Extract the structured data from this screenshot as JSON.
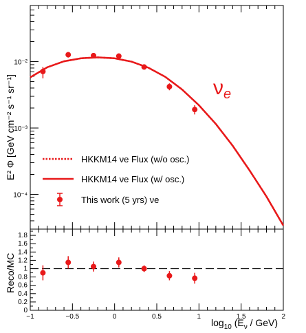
{
  "colors": {
    "accent": "#e8191a",
    "axis": "#000000",
    "background": "#ffffff"
  },
  "chart_data": [
    {
      "type": "line",
      "panel": "top",
      "ylabel": "E² Φ [GeV cm⁻² s⁻¹ sr⁻¹]",
      "y_scale": "log",
      "ylim": [
        3e-05,
        0.07
      ],
      "xlim": [
        -1,
        2
      ],
      "y_tick_labels": [
        "10⁻²",
        "10⁻³",
        "10⁻⁴"
      ],
      "annotation": "νe",
      "legend": {
        "placement": "bottom-left",
        "entries": [
          {
            "label": "HKKM14 νe Flux (w/o osc.)",
            "style": "dotted-line"
          },
          {
            "label": "HKKM14 νe Flux (w/ osc.)",
            "style": "solid-line"
          },
          {
            "label": "This work (5 yrs) νe",
            "style": "marker-errorbar"
          }
        ]
      },
      "series": [
        {
          "name": "HKKM14 νe Flux (w/o osc.)",
          "x": [
            -1.0,
            -0.8,
            -0.6,
            -0.4,
            -0.2,
            0.0,
            0.2,
            0.4,
            0.6,
            0.8,
            1.0,
            1.2,
            1.4,
            1.6,
            1.8,
            2.0
          ],
          "y": [
            0.0058,
            0.0082,
            0.0101,
            0.0112,
            0.0116,
            0.0112,
            0.01,
            0.0081,
            0.0059,
            0.0038,
            0.0022,
            0.00115,
            0.00054,
            0.00023,
            9.3e-05,
            3.4e-05
          ]
        },
        {
          "name": "HKKM14 νe Flux (w/ osc.)",
          "x": [
            -1.0,
            -0.8,
            -0.6,
            -0.4,
            -0.2,
            0.0,
            0.2,
            0.4,
            0.6,
            0.8,
            1.0,
            1.2,
            1.4,
            1.6,
            1.8,
            2.0
          ],
          "y": [
            0.0058,
            0.0082,
            0.0101,
            0.0112,
            0.0116,
            0.0112,
            0.01,
            0.0081,
            0.0059,
            0.0038,
            0.0022,
            0.00115,
            0.00054,
            0.00023,
            9.3e-05,
            3.4e-05
          ]
        },
        {
          "name": "This work (5 yrs) νe",
          "x": [
            -0.85,
            -0.55,
            -0.25,
            0.05,
            0.35,
            0.65,
            0.95
          ],
          "y": [
            0.0071,
            0.0127,
            0.0123,
            0.0121,
            0.0083,
            0.0042,
            0.0019
          ],
          "y_low": [
            0.0056,
            0.0115,
            0.0116,
            0.0114,
            0.0079,
            0.0037,
            0.0016
          ],
          "y_high": [
            0.0083,
            0.0137,
            0.013,
            0.0128,
            0.0088,
            0.0047,
            0.0022
          ]
        }
      ]
    },
    {
      "type": "scatter",
      "panel": "bottom",
      "ylabel": "Reco/MC",
      "xlabel": "log₁₀ (E_ν / GeV)",
      "xlim": [
        -1,
        2
      ],
      "ylim": [
        0,
        1.9
      ],
      "x_tick_labels": [
        "−1",
        "−0.5",
        "0",
        "0.5",
        "1",
        "1.5",
        "2"
      ],
      "y_tick_labels": [
        "0",
        "0.2",
        "0.4",
        "0.6",
        "0.8",
        "1",
        "1.2",
        "1.4",
        "1.6",
        "1.8"
      ],
      "reference_line": 1.0,
      "series": [
        {
          "x": [
            -0.85,
            -0.55,
            -0.25,
            0.05,
            0.35,
            0.65,
            0.95
          ],
          "y": [
            0.9,
            1.15,
            1.05,
            1.15,
            1.0,
            0.83,
            0.77
          ],
          "y_low": [
            0.72,
            1.0,
            0.93,
            1.03,
            0.92,
            0.72,
            0.64
          ],
          "y_high": [
            1.08,
            1.3,
            1.17,
            1.27,
            1.08,
            0.94,
            0.9
          ]
        }
      ]
    }
  ]
}
